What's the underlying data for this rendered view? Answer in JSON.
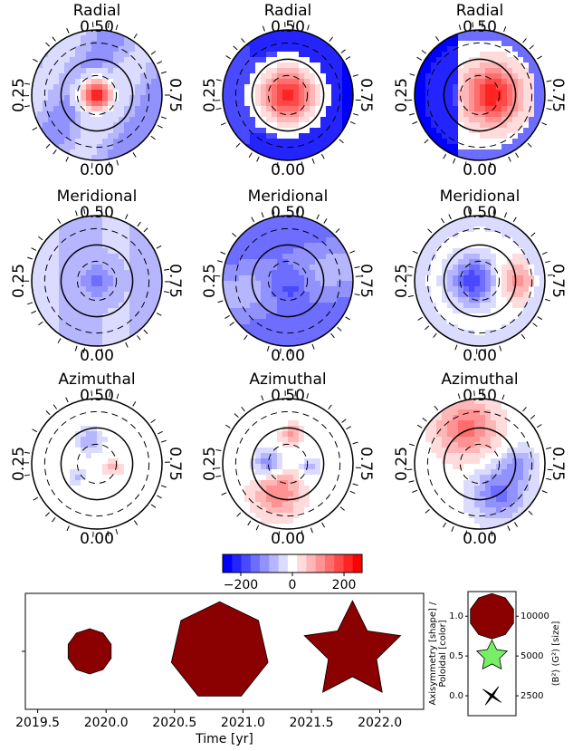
{
  "maps": {
    "panels": [
      {
        "title": "Radial",
        "top": "0.50",
        "left": "0.25",
        "right": "0.75",
        "bottom": "0.00"
      },
      {
        "title": "Radial",
        "top": "0.50",
        "left": "0.25",
        "right": "0.75",
        "bottom": "0.00"
      },
      {
        "title": "Radial",
        "top": "0.50",
        "left": "0.25",
        "right": "0.75",
        "bottom": "0.00"
      },
      {
        "title": "Meridional",
        "top": "0.50",
        "left": "0.25",
        "right": "0.75",
        "bottom": "0.00"
      },
      {
        "title": "Meridional",
        "top": "0.50",
        "left": "0.25",
        "right": "0.75",
        "bottom": "0.00"
      },
      {
        "title": "Meridional",
        "top": "0.50",
        "left": "0.25",
        "right": "0.75",
        "bottom": "0.00"
      },
      {
        "title": "Azimuthal",
        "top": "0.50",
        "left": "0.25",
        "right": "0.75",
        "bottom": "0.00"
      },
      {
        "title": "Azimuthal",
        "top": "0.50",
        "left": "0.25",
        "right": "0.75",
        "bottom": "0.00"
      },
      {
        "title": "Azimuthal",
        "top": "0.50",
        "left": "0.25",
        "right": "0.75",
        "bottom": "0.00"
      }
    ]
  },
  "colorbar": {
    "clim": [
      -270,
      270
    ],
    "ticks": [
      {
        "value": -200,
        "label": "−200"
      },
      0,
      200
    ]
  },
  "chart_data": {
    "type": "scatter",
    "xlabel": "Time [yr]",
    "x": [
      2019.88,
      2020.83,
      2021.8
    ],
    "y": [
      0,
      0,
      0
    ],
    "sizes": [
      10000,
      48000,
      50000
    ],
    "color": "#8b0000",
    "xlim": [
      2019.41,
      2022.32
    ],
    "xticks": [
      {
        "value": 2019.5,
        "label": "2019.5"
      },
      {
        "value": 2020.0,
        "label": "2020.0"
      },
      {
        "value": 2020.5,
        "label": "2020.5"
      },
      {
        "value": 2021.0,
        "label": "2021.0"
      },
      {
        "value": 2021.5,
        "label": "2021.5"
      },
      {
        "value": 2022.0,
        "label": "2022.0"
      }
    ],
    "ylim": [
      -1,
      1
    ],
    "yticks": [
      0
    ]
  },
  "size_legend": {
    "ylabel": [
      "Axisymmetry [shape] /",
      "Poloidal [color]"
    ],
    "y2label": "⟨B²⟩ (G²) [size]",
    "y": [
      0,
      0.5,
      1.0
    ],
    "sizes": [
      2500,
      5000,
      10000
    ],
    "colors": [
      "#000000",
      "#77ee66",
      "#8b0000"
    ],
    "ylim": [
      -0.25,
      1.31
    ],
    "yticks": [
      {
        "value": 0,
        "label": "0.0"
      },
      {
        "value": 0.5,
        "label": "0.5"
      },
      {
        "value": 1.0,
        "label": "1.0"
      }
    ]
  }
}
